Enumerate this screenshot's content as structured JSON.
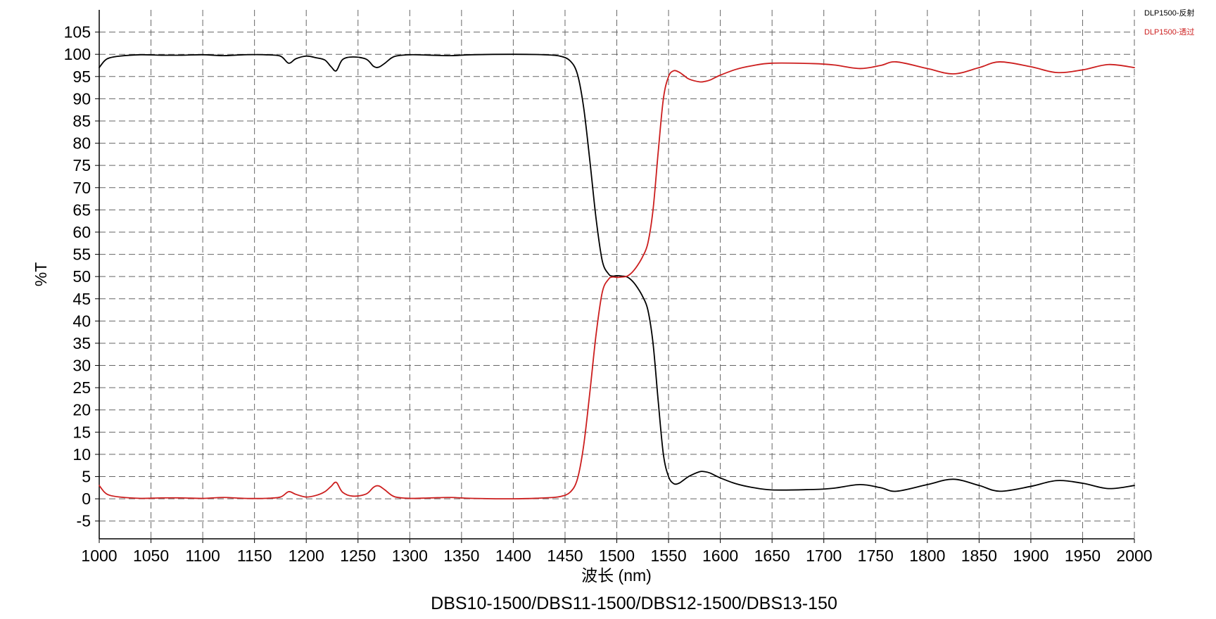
{
  "chart_data": {
    "type": "line",
    "title": "",
    "caption": "DBS10-1500/DBS11-1500/DBS12-1500/DBS13-150",
    "xlabel": "波长 (nm)",
    "ylabel": "%T",
    "xlim": [
      1000,
      2000
    ],
    "ylim": [
      -9,
      110
    ],
    "x_ticks": [
      1000,
      1050,
      1100,
      1150,
      1200,
      1250,
      1300,
      1350,
      1400,
      1450,
      1500,
      1550,
      1600,
      1650,
      1700,
      1750,
      1800,
      1850,
      1900,
      1950,
      2000
    ],
    "x_tick_labels": [
      "1000",
      "1050",
      "1100",
      "1150",
      "1200",
      "1250",
      "1300",
      "1350",
      "1400",
      "1450",
      "1500",
      "1550",
      "1600",
      "1650",
      "1700",
      "1750",
      "1800",
      "1850",
      "1900",
      "1950",
      "2000"
    ],
    "y_ticks": [
      105,
      100,
      95,
      90,
      85,
      80,
      75,
      70,
      65,
      60,
      55,
      50,
      45,
      40,
      35,
      30,
      25,
      20,
      15,
      10,
      5,
      0,
      -5
    ],
    "y_tick_labels": [
      "105",
      "100",
      "95",
      "90",
      "85",
      "80",
      "75",
      "70",
      "65",
      "60",
      "55",
      "50",
      "45",
      "40",
      "35",
      "30",
      "25",
      "20",
      "15",
      "10",
      "5",
      "0",
      "-5"
    ],
    "grid": true,
    "legend_position": "top-right",
    "series": [
      {
        "name": "DLP1500-反射",
        "color": "#000000",
        "x": [
          1000,
          1005,
          1010,
          1020,
          1040,
          1060,
          1080,
          1100,
          1120,
          1140,
          1160,
          1175,
          1183,
          1190,
          1200,
          1210,
          1218,
          1224,
          1229,
          1235,
          1245,
          1258,
          1265,
          1270,
          1276,
          1285,
          1300,
          1320,
          1340,
          1360,
          1400,
          1430,
          1445,
          1455,
          1462,
          1468,
          1474,
          1480,
          1486,
          1492,
          1496,
          1500,
          1505,
          1510,
          1515,
          1520,
          1525,
          1530,
          1535,
          1540,
          1545,
          1550,
          1555,
          1560,
          1565,
          1570,
          1580,
          1585,
          1590,
          1600,
          1615,
          1630,
          1650,
          1690,
          1710,
          1735,
          1755,
          1770,
          1800,
          1825,
          1850,
          1870,
          1900,
          1925,
          1950,
          1975,
          2000
        ],
        "y": [
          97.0,
          98.5,
          99.2,
          99.6,
          99.9,
          99.8,
          99.8,
          99.9,
          99.7,
          99.9,
          99.9,
          99.6,
          98.0,
          99.0,
          99.6,
          99.2,
          98.7,
          97.2,
          96.3,
          98.8,
          99.4,
          98.9,
          97.3,
          97.1,
          98.0,
          99.5,
          99.9,
          99.8,
          99.7,
          99.9,
          100.0,
          99.9,
          99.6,
          98.5,
          95.5,
          88.0,
          76.0,
          63.0,
          53.5,
          50.6,
          50.1,
          50.2,
          50.1,
          49.9,
          49.0,
          47.5,
          45.5,
          42.5,
          35.0,
          22.0,
          10.0,
          5.0,
          3.4,
          3.5,
          4.3,
          5.1,
          6.1,
          6.1,
          5.8,
          4.7,
          3.4,
          2.6,
          2.0,
          2.1,
          2.4,
          3.2,
          2.5,
          1.7,
          3.2,
          4.4,
          3.0,
          1.7,
          2.8,
          4.1,
          3.5,
          2.3,
          3.0
        ]
      },
      {
        "name": "DLP1500-透过",
        "color": "#cc1e1e",
        "x": [
          1000,
          1005,
          1010,
          1020,
          1040,
          1060,
          1080,
          1100,
          1120,
          1140,
          1160,
          1175,
          1183,
          1190,
          1200,
          1210,
          1218,
          1224,
          1229,
          1235,
          1245,
          1258,
          1265,
          1270,
          1276,
          1285,
          1300,
          1320,
          1340,
          1360,
          1400,
          1430,
          1445,
          1455,
          1462,
          1468,
          1474,
          1480,
          1486,
          1492,
          1496,
          1500,
          1505,
          1510,
          1515,
          1520,
          1525,
          1530,
          1535,
          1540,
          1545,
          1550,
          1555,
          1560,
          1565,
          1570,
          1580,
          1585,
          1590,
          1600,
          1615,
          1630,
          1650,
          1690,
          1710,
          1735,
          1755,
          1770,
          1800,
          1825,
          1850,
          1870,
          1900,
          1925,
          1950,
          1975,
          2000
        ],
        "y": [
          3.0,
          1.5,
          0.8,
          0.4,
          0.1,
          0.2,
          0.2,
          0.1,
          0.3,
          0.1,
          0.1,
          0.4,
          1.6,
          1.0,
          0.4,
          0.8,
          1.6,
          2.8,
          3.7,
          1.5,
          0.6,
          1.1,
          2.6,
          2.9,
          2.0,
          0.5,
          0.1,
          0.2,
          0.3,
          0.1,
          0.0,
          0.2,
          0.5,
          1.5,
          4.5,
          12.0,
          24.0,
          37.0,
          46.5,
          49.4,
          49.9,
          49.8,
          49.9,
          50.1,
          51.0,
          52.5,
          54.5,
          57.5,
          65.0,
          78.0,
          90.0,
          95.0,
          96.3,
          96.0,
          95.2,
          94.4,
          93.8,
          93.9,
          94.2,
          95.3,
          96.6,
          97.4,
          98.0,
          97.9,
          97.6,
          96.8,
          97.5,
          98.3,
          96.8,
          95.6,
          97.0,
          98.3,
          97.2,
          95.9,
          96.5,
          97.7,
          97.0
        ]
      }
    ]
  }
}
